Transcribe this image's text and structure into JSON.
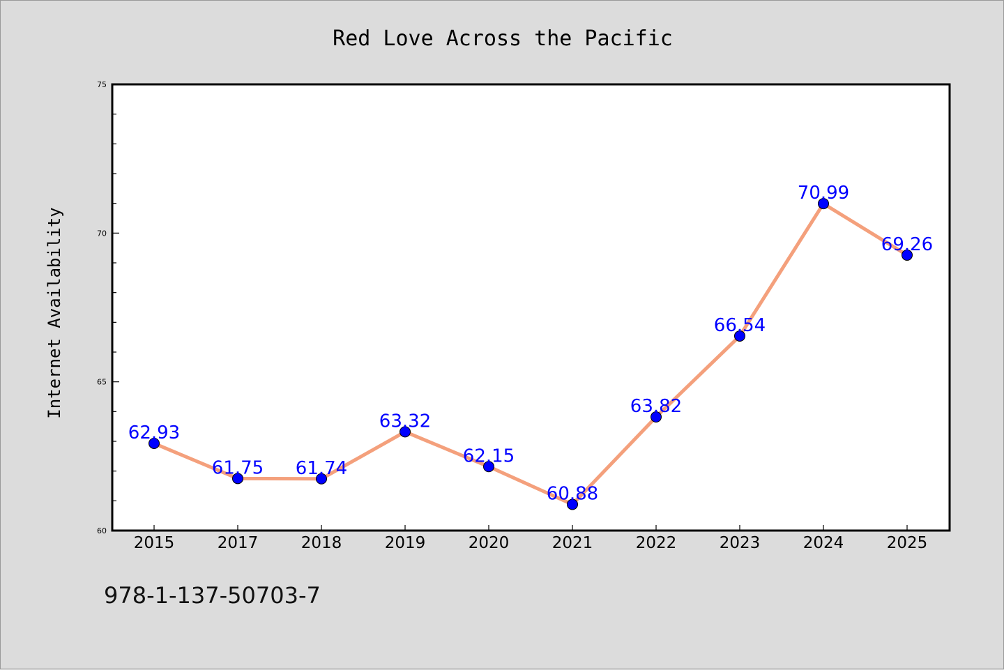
{
  "chart_data": {
    "type": "line",
    "title": "Red Love Across the Pacific",
    "xlabel": "",
    "ylabel": "Internet Availability",
    "categories": [
      "2015",
      "2017",
      "2018",
      "2019",
      "2020",
      "2021",
      "2022",
      "2023",
      "2024",
      "2025"
    ],
    "series": [
      {
        "values": [
          62.93,
          61.75,
          61.74,
          63.32,
          62.15,
          60.88,
          63.82,
          66.54,
          70.99,
          69.26
        ],
        "labels": [
          "62.93",
          "61.75",
          "61.74",
          "63.32",
          "62.15",
          "60.88",
          "63.82",
          "66.54",
          "70.99",
          "69.26"
        ],
        "line_color": "#f4a07c",
        "marker_color": "#0000ff"
      }
    ],
    "ylim": [
      60,
      75
    ],
    "yticks": [
      60,
      65,
      70,
      75
    ],
    "ytick_labels": [
      "60",
      "65",
      "70",
      "75"
    ],
    "grid": false,
    "legend": "none"
  },
  "footer": {
    "code": "978-1-137-50703-7"
  },
  "colors": {
    "background": "#dcdcdc",
    "plot_background": "#ffffff",
    "line": "#f4a07c",
    "marker": "#0000ff",
    "data_label": "#0000ff"
  }
}
